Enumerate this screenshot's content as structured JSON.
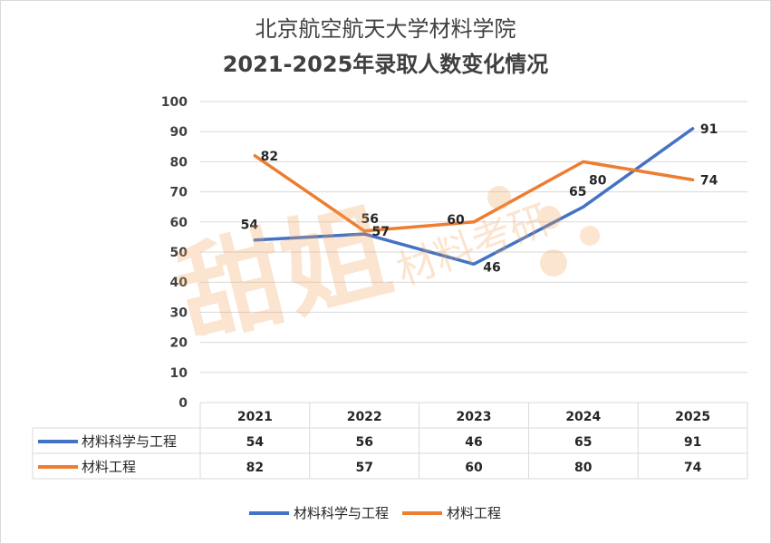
{
  "chart_data": {
    "type": "line",
    "title_line1": "北京航空航天大学材料学院",
    "title_line2": "2021-2025年录取人数变化情况",
    "categories": [
      "2021",
      "2022",
      "2023",
      "2024",
      "2025"
    ],
    "series": [
      {
        "name": "材料科学与工程",
        "color": "#4472c4",
        "values": [
          54,
          56,
          46,
          65,
          91
        ]
      },
      {
        "name": "材料工程",
        "color": "#ed7d31",
        "values": [
          82,
          57,
          60,
          80,
          74
        ]
      }
    ],
    "ylim": [
      0,
      100
    ],
    "yticks": [
      0,
      10,
      20,
      30,
      40,
      50,
      60,
      70,
      80,
      90,
      100
    ],
    "gridlines": true,
    "data_table": true,
    "legend_position": "bottom"
  },
  "watermark": {
    "text": "甜姐",
    "subtext": "材料考研"
  }
}
